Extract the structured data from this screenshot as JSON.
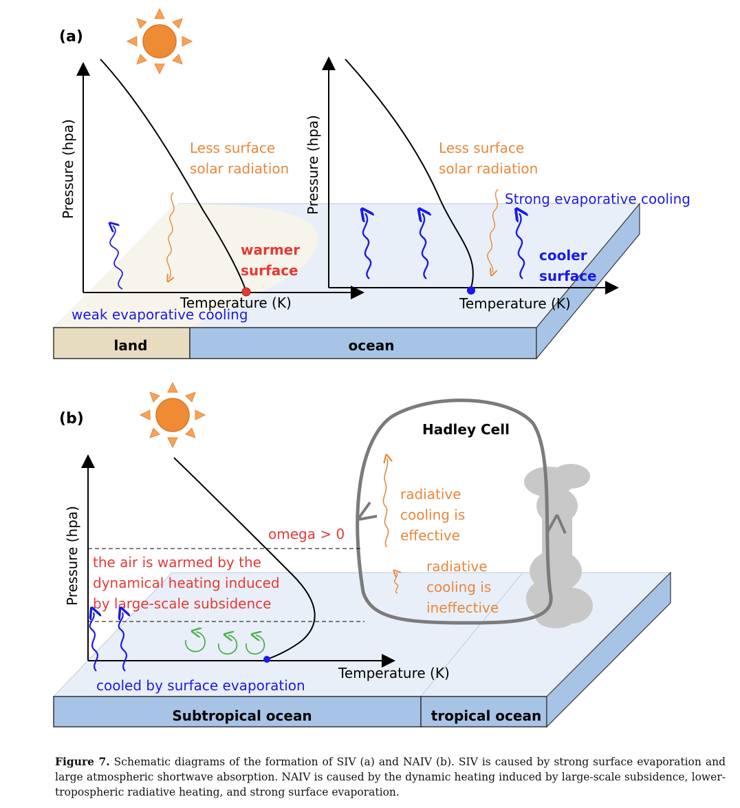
{
  "panel_a": {
    "label": "(a)",
    "left_plot": {
      "ylabel": "Pressure (hpa)",
      "xlabel": "Temperature (K)",
      "radiation": "Less surface\nsolar radiation",
      "surface": "warmer\nsurface",
      "evaporation": "weak evaporative cooling"
    },
    "right_plot": {
      "ylabel": "Pressure (hpa)",
      "xlabel": "Temperature (K)",
      "radiation": "Less surface\nsolar radiation",
      "evaporation": "Strong evaporative cooling",
      "surface": "cooler\nsurface"
    },
    "land_label": "land",
    "ocean_label": "ocean"
  },
  "panel_b": {
    "label": "(b)",
    "ylabel": "Pressure (hpa)",
    "xlabel": "Temperature (K)",
    "omega": "omega > 0",
    "warming": "the air is warmed by the\ndynamical heating induced\nby large-scale subsidence",
    "cooling": "cooled by surface evaporation",
    "hadley": "Hadley Cell",
    "rad_effective": "radiative\ncooling is\neffective",
    "rad_ineffective": "radiative\ncooling is\nineffective",
    "subtropical_label": "Subtropical ocean",
    "tropical_label": "tropical ocean"
  },
  "colors": {
    "orange": "#E8873A",
    "red": "#E53935",
    "blue": "#1A1AE6",
    "green": "#4CAF50",
    "ocean": "#A7C4E6",
    "land": "#E8DCC0",
    "cloud": "#C8C8C8"
  },
  "caption": {
    "figure_label": "Figure 7.",
    "text": "Schematic diagrams of the formation of SIV (a) and NAIV (b). SIV is caused by strong surface evaporation and large atmospheric shortwave absorption. NAIV is caused by the dynamic heating induced by large-scale subsidence, lower-tropospheric radiative heating, and strong surface evaporation."
  }
}
